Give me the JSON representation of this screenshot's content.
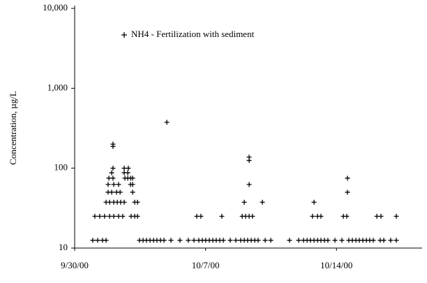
{
  "chart_data": {
    "type": "scatter",
    "y_label": "Concentration, µg/L",
    "log_y": true,
    "ylim": [
      10,
      10000
    ],
    "yticks": [
      10,
      100,
      {
        "value": 1000,
        "label": "1,000"
      },
      {
        "value": 10000,
        "label": "10,000"
      }
    ],
    "xlim": [
      0,
      18.58
    ],
    "xticks": [
      {
        "value": 0,
        "label": "9/30/00"
      },
      {
        "value": 7,
        "label": "10/7/00"
      },
      {
        "value": 14,
        "label": "10/14/00"
      }
    ],
    "legend": "top",
    "series": [
      {
        "name": "NH4 - Fertilization with sediment",
        "color": "#000000",
        "marker": "+",
        "x": [
          0.97,
          1.23,
          1.49,
          1.68,
          3.47,
          3.66,
          3.84,
          4.03,
          4.22,
          4.4,
          4.59,
          4.78,
          5.15,
          5.63,
          6.08,
          6.38,
          6.64,
          6.83,
          7.01,
          7.2,
          7.39,
          7.57,
          7.76,
          7.95,
          8.32,
          8.62,
          8.88,
          9.07,
          9.25,
          9.44,
          9.63,
          9.81,
          10.19,
          10.49,
          11.49,
          11.98,
          12.24,
          12.43,
          12.61,
          12.8,
          12.99,
          13.17,
          13.36,
          13.54,
          13.92,
          14.29,
          14.66,
          14.85,
          15.04,
          15.22,
          15.41,
          15.6,
          15.78,
          15.97,
          16.34,
          16.53,
          16.9,
          17.2,
          1.08,
          1.34,
          1.6,
          1.87,
          2.09,
          2.35,
          2.57,
          3.02,
          3.21,
          3.36,
          6.53,
          6.75,
          7.87,
          8.96,
          9.14,
          9.33,
          9.51,
          12.72,
          12.99,
          13.17,
          14.37,
          14.55,
          16.16,
          16.38,
          17.2,
          1.68,
          1.87,
          2.09,
          2.28,
          2.46,
          2.65,
          3.21,
          3.36,
          9.07,
          10.04,
          12.8,
          1.79,
          1.98,
          2.24,
          2.43,
          3.1,
          14.59,
          1.79,
          2.09,
          2.35,
          2.99,
          3.1,
          9.33,
          1.83,
          2.05,
          2.69,
          2.84,
          2.99,
          3.1,
          14.59,
          1.98,
          2.65,
          2.84,
          2.05,
          2.65,
          2.87,
          9.33,
          9.33,
          2.05,
          2.05,
          4.93
        ],
        "values": [
          12.5,
          12.5,
          12.5,
          12.5,
          12.5,
          12.5,
          12.5,
          12.5,
          12.5,
          12.5,
          12.5,
          12.5,
          12.5,
          12.5,
          12.5,
          12.5,
          12.5,
          12.5,
          12.5,
          12.5,
          12.5,
          12.5,
          12.5,
          12.5,
          12.5,
          12.5,
          12.5,
          12.5,
          12.5,
          12.5,
          12.5,
          12.5,
          12.5,
          12.5,
          12.5,
          12.5,
          12.5,
          12.5,
          12.5,
          12.5,
          12.5,
          12.5,
          12.5,
          12.5,
          12.5,
          12.5,
          12.5,
          12.5,
          12.5,
          12.5,
          12.5,
          12.5,
          12.5,
          12.5,
          12.5,
          12.5,
          12.5,
          12.5,
          25,
          25,
          25,
          25,
          25,
          25,
          25,
          25,
          25,
          25,
          25,
          25,
          25,
          25,
          25,
          25,
          25,
          25,
          25,
          25,
          25,
          25,
          25,
          25,
          25,
          37.5,
          37.5,
          37.5,
          37.5,
          37.5,
          37.5,
          37.5,
          37.5,
          37.5,
          37.5,
          37.5,
          50,
          50,
          50,
          50,
          50,
          50,
          62.5,
          62.5,
          62.5,
          62.5,
          62.5,
          62.5,
          75,
          75,
          75,
          75,
          75,
          75,
          75,
          87.5,
          87.5,
          87.5,
          100,
          100,
          100,
          125,
          137.5,
          187.5,
          200,
          375
        ]
      }
    ]
  }
}
